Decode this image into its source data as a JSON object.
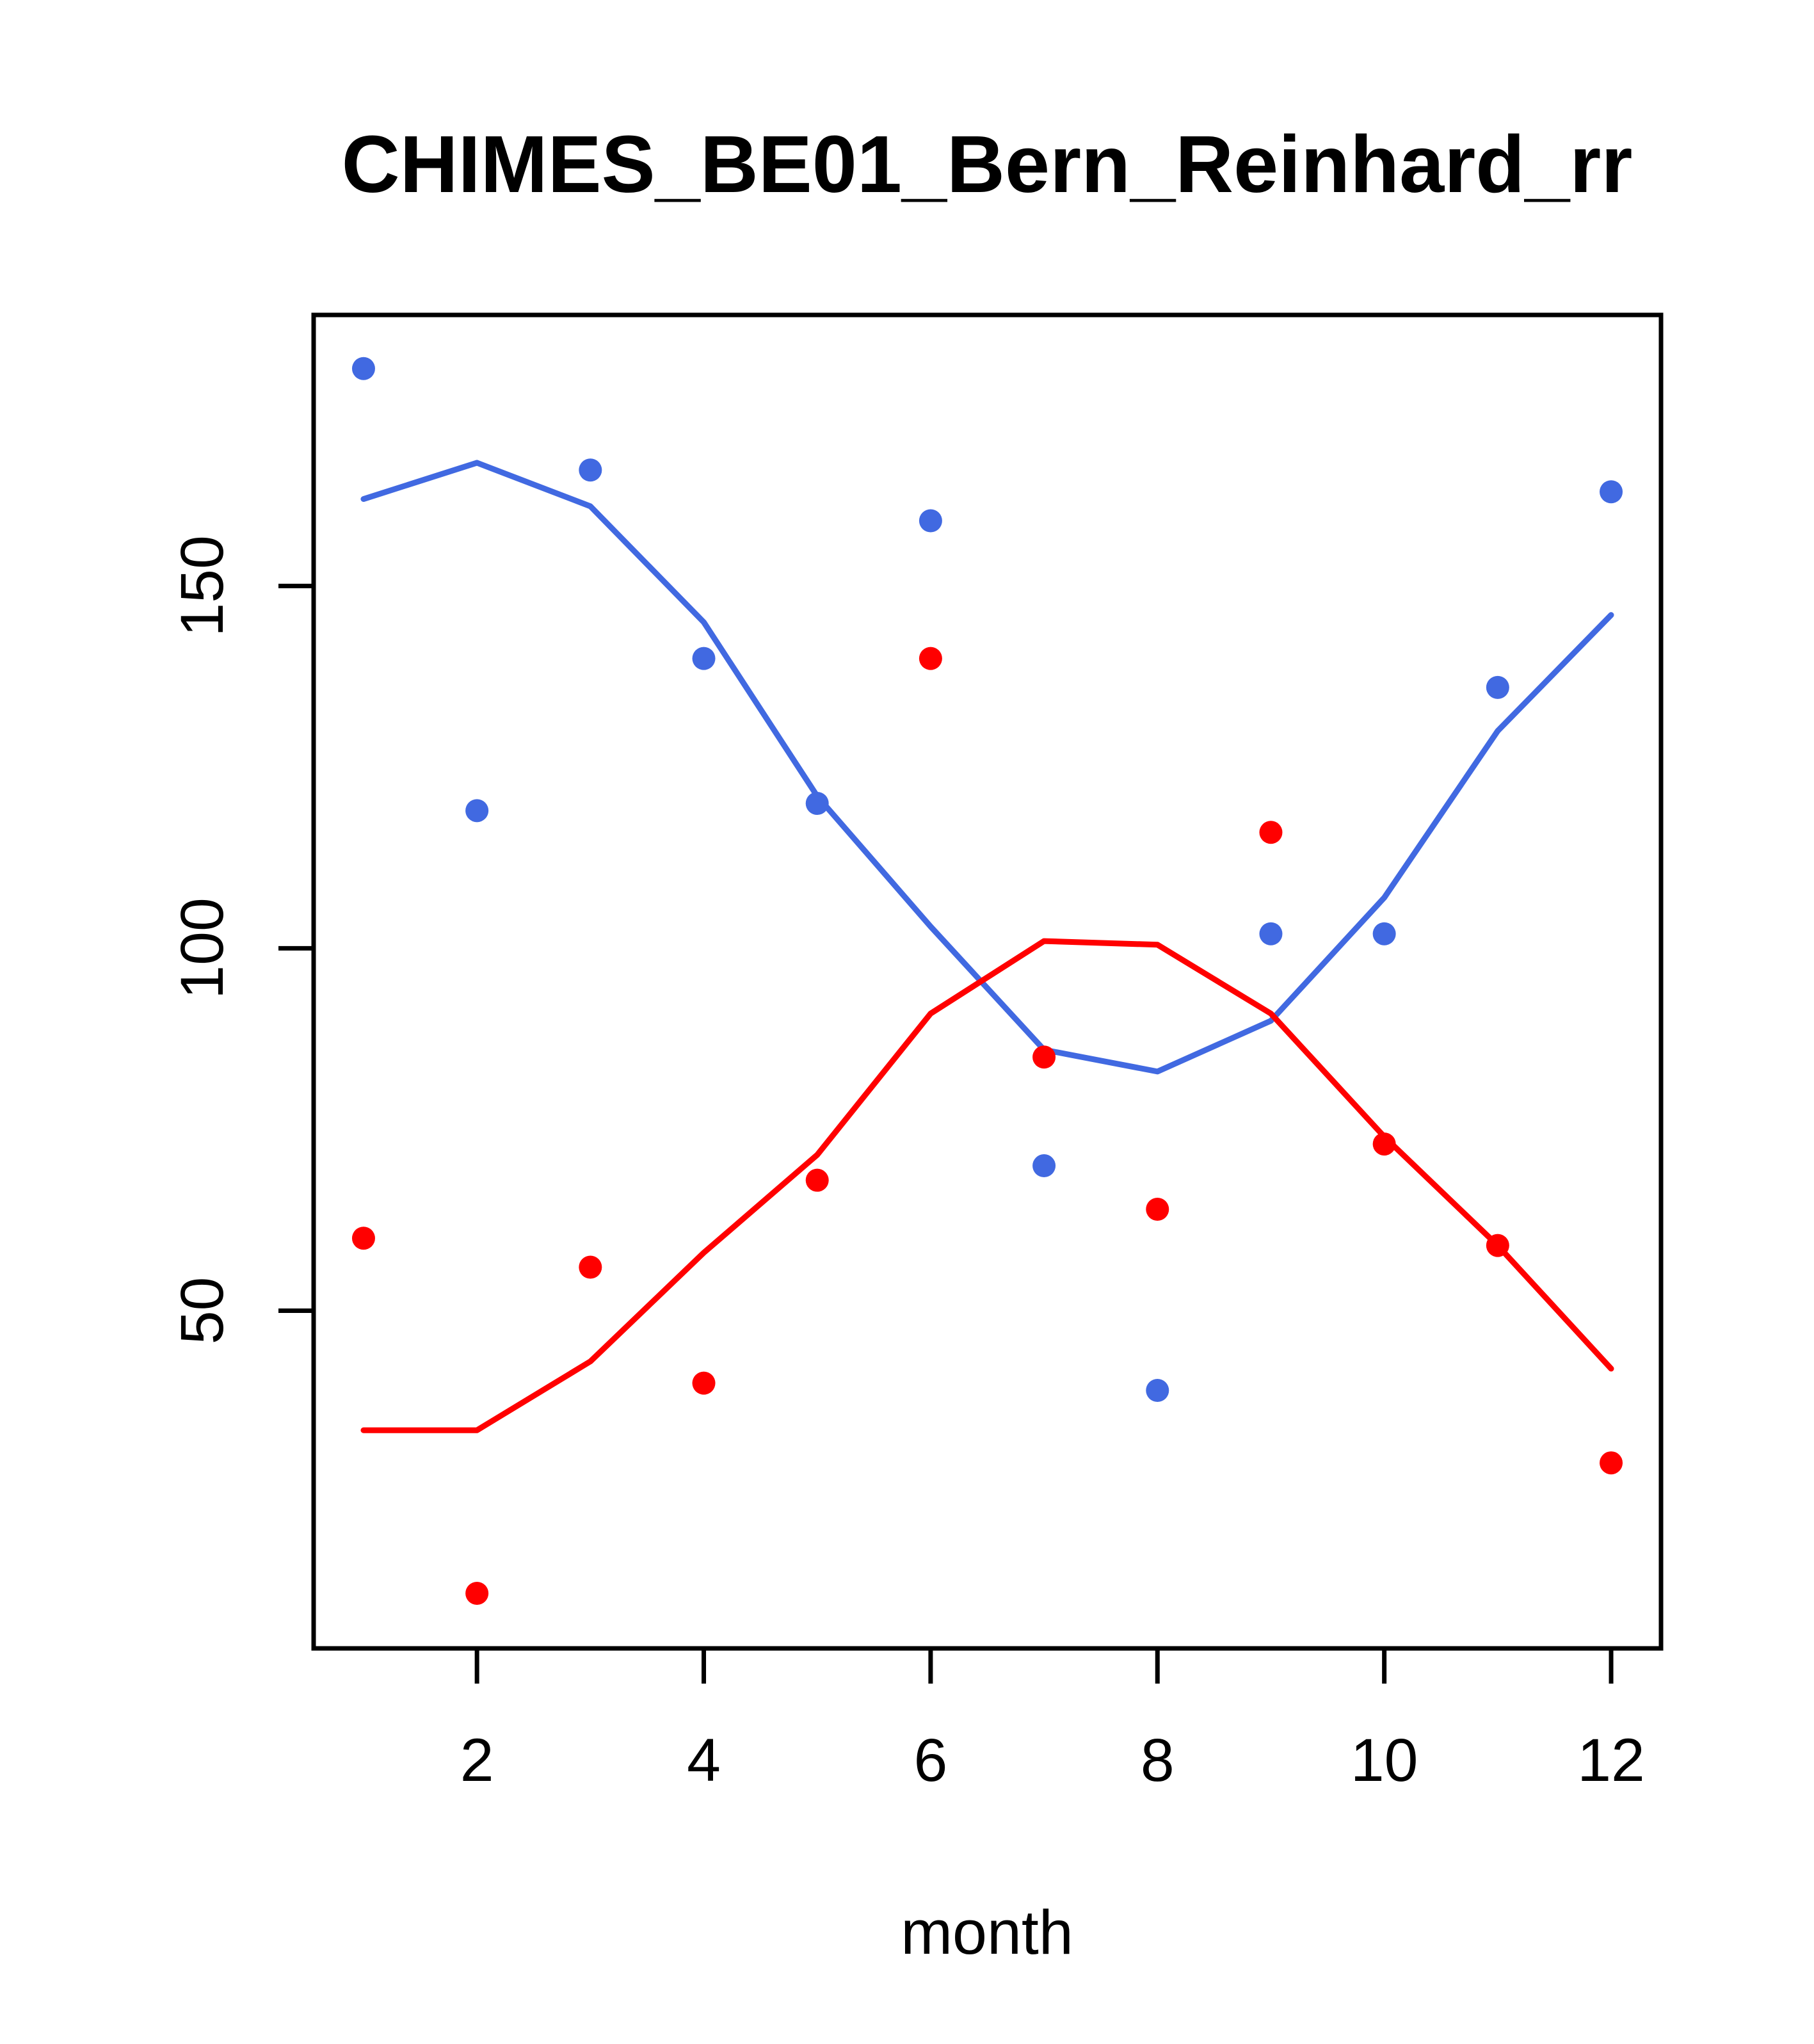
{
  "title": "CHIMES_BE01_Bern_Reinhard_rr",
  "chart_data": {
    "type": "scatter",
    "title": "CHIMES_BE01_Bern_Reinhard_rr",
    "xlabel": "month",
    "ylabel": "",
    "x": [
      1,
      2,
      3,
      4,
      5,
      6,
      7,
      8,
      9,
      10,
      11,
      12
    ],
    "xticks": [
      2,
      4,
      6,
      8,
      10,
      12
    ],
    "yticks": [
      50,
      100,
      150
    ],
    "xlim": [
      0.56,
      12.44
    ],
    "ylim": [
      3.4,
      187.4
    ],
    "grid": false,
    "legend": "none",
    "colors": {
      "blue": "#4169E1",
      "red": "#FF0000",
      "axis": "#000000",
      "background": "#FFFFFF"
    },
    "series": [
      {
        "name": "blue-points",
        "kind": "points",
        "color_key": "blue",
        "values": [
          180,
          119,
          166,
          140,
          120,
          159,
          70,
          39,
          102,
          102,
          136,
          163
        ]
      },
      {
        "name": "red-points",
        "kind": "points",
        "color_key": "red",
        "values": [
          60,
          11,
          56,
          40,
          68,
          140,
          85,
          64,
          116,
          73,
          59,
          29
        ]
      },
      {
        "name": "blue-smooth-line",
        "kind": "line",
        "color_key": "blue",
        "values": [
          162,
          167,
          161,
          145,
          121,
          103,
          86,
          83,
          90,
          107,
          130,
          146
        ]
      },
      {
        "name": "red-smooth-line",
        "kind": "line",
        "color_key": "red",
        "values": [
          33.5,
          33.5,
          43,
          58,
          71.5,
          91,
          101,
          100.5,
          91,
          74,
          59,
          42
        ]
      }
    ]
  }
}
